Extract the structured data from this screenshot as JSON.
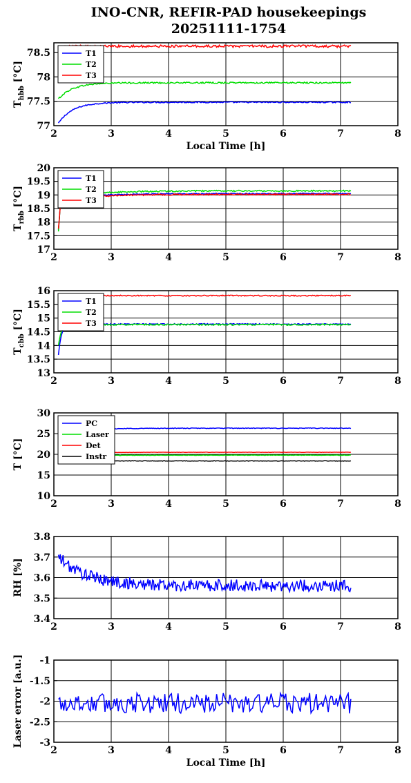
{
  "title_line1": "INO-CNR, REFIR-PAD housekeepings",
  "title_line2": "20251111-1754",
  "chart_data": [
    {
      "type": "line",
      "ylabel": "T_hbb [°C]",
      "ylabel_main": "T",
      "ylabel_sub": "hbb",
      "ylabel_rest": " [°C]",
      "xlabel": "Local Time [h]",
      "xlim": [
        2,
        8
      ],
      "ylim": [
        77,
        78.7
      ],
      "xticks": [
        2,
        3,
        4,
        5,
        6,
        7,
        8
      ],
      "yticks": [
        77,
        77.5,
        78,
        78.5
      ],
      "ytick_labels": [
        "77",
        "77.5",
        "78",
        "78.5"
      ],
      "grid": true,
      "legend": "top-left",
      "series": [
        {
          "name": "T1",
          "color": "#0000ff",
          "base": 77.48,
          "noise": 0.012,
          "start": 77.05,
          "tau": 0.25
        },
        {
          "name": "T2",
          "color": "#00dd00",
          "base": 77.88,
          "noise": 0.015,
          "start": 77.55,
          "tau": 0.25
        },
        {
          "name": "T3",
          "color": "#ff0000",
          "base": 78.63,
          "noise": 0.025,
          "start": 78.6,
          "tau": 0.1
        }
      ]
    },
    {
      "type": "line",
      "ylabel": "T_rbb [°C]",
      "ylabel_main": "T",
      "ylabel_sub": "rbb",
      "ylabel_rest": " [°C]",
      "xlabel": "",
      "xlim": [
        2,
        8
      ],
      "ylim": [
        17,
        20
      ],
      "xticks": [
        2,
        3,
        4,
        5,
        6,
        7,
        8
      ],
      "yticks": [
        17,
        17.5,
        18,
        18.5,
        19,
        19.5,
        20
      ],
      "ytick_labels": [
        "17",
        "17.5",
        "18",
        "18.5",
        "19",
        "19.5",
        "20"
      ],
      "grid": true,
      "legend": "top-left",
      "series": [
        {
          "name": "T1",
          "color": "#0000ff",
          "base": 19.05,
          "noise": 0.02,
          "start": 17.7,
          "tau": 0.6,
          "mid": 18.85
        },
        {
          "name": "T2",
          "color": "#00dd00",
          "base": 19.15,
          "noise": 0.025,
          "start": 17.65,
          "tau": 0.6,
          "mid": 18.9
        },
        {
          "name": "T3",
          "color": "#ff0000",
          "base": 19.02,
          "noise": 0.025,
          "start": 17.75,
          "tau": 0.6,
          "mid": 18.8
        }
      ]
    },
    {
      "type": "line",
      "ylabel": "T_cbb [°C]",
      "ylabel_main": "T",
      "ylabel_sub": "cbb",
      "ylabel_rest": " [°C]",
      "xlabel": "",
      "xlim": [
        2,
        8
      ],
      "ylim": [
        13,
        16
      ],
      "xticks": [
        2,
        3,
        4,
        5,
        6,
        7,
        8
      ],
      "yticks": [
        13,
        13.5,
        14,
        14.5,
        15,
        15.5,
        16
      ],
      "ytick_labels": [
        "13",
        "13.5",
        "14",
        "14.5",
        "15",
        "15.5",
        "16"
      ],
      "grid": true,
      "legend": "top-left",
      "series": [
        {
          "name": "T1",
          "color": "#0000ff",
          "base": 14.78,
          "noise": 0.02,
          "start": 13.65,
          "tau": 0.05
        },
        {
          "name": "T2",
          "color": "#00dd00",
          "base": 14.76,
          "noise": 0.025,
          "start": 14.0,
          "tau": 0.05
        },
        {
          "name": "T3",
          "color": "#ff0000",
          "base": 15.82,
          "noise": 0.02,
          "start": 15.8,
          "tau": 0.05
        }
      ]
    },
    {
      "type": "line",
      "ylabel": "T [°C]",
      "xlabel": "",
      "xlim": [
        2,
        8
      ],
      "ylim": [
        10,
        30
      ],
      "xticks": [
        2,
        3,
        4,
        5,
        6,
        7,
        8
      ],
      "yticks": [
        10,
        15,
        20,
        25,
        30
      ],
      "ytick_labels": [
        "10",
        "15",
        "20",
        "25",
        "30"
      ],
      "grid": true,
      "legend": "top-left",
      "series": [
        {
          "name": "PC",
          "color": "#0000ff",
          "base": 26.3,
          "noise": 0.08,
          "start": 25.5,
          "tau": 0.5
        },
        {
          "name": "Laser",
          "color": "#00dd00",
          "base": 19.8,
          "noise": 0.05,
          "start": 19.5,
          "tau": 0.5
        },
        {
          "name": "Det",
          "color": "#ff0000",
          "base": 20.5,
          "noise": 0.04,
          "start": 20.2,
          "tau": 0.5
        },
        {
          "name": "Instr",
          "color": "#000000",
          "base": 18.4,
          "noise": 0.06,
          "start": 18.6,
          "tau": 0.5
        }
      ]
    },
    {
      "type": "line",
      "ylabel": "RH [%]",
      "xlabel": "",
      "xlim": [
        2,
        8
      ],
      "ylim": [
        3.4,
        3.8
      ],
      "xticks": [
        2,
        3,
        4,
        5,
        6,
        7,
        8
      ],
      "yticks": [
        3.4,
        3.5,
        3.6,
        3.7,
        3.8
      ],
      "ytick_labels": [
        "3.4",
        "3.5",
        "3.6",
        "3.7",
        "3.8"
      ],
      "grid": true,
      "series": [
        {
          "name": "",
          "color": "#0000ff",
          "base": 3.56,
          "noise": 0.03,
          "start": 3.7,
          "tau": 0.5
        }
      ]
    },
    {
      "type": "line",
      "ylabel": "Laser error [a.u.]",
      "xlabel": "Local Time [h]",
      "xlim": [
        2,
        8
      ],
      "ylim": [
        -3,
        -1
      ],
      "xticks": [
        2,
        3,
        4,
        5,
        6,
        7,
        8
      ],
      "yticks": [
        -3,
        -2.5,
        -2,
        -1.5,
        -1
      ],
      "ytick_labels": [
        "-3",
        "-2.5",
        "-2",
        "-1.5",
        "-1"
      ],
      "grid": true,
      "series": [
        {
          "name": "",
          "color": "#0000ff",
          "base": -2.05,
          "noise": 0.25,
          "start": -2.05,
          "tau": 0.1
        }
      ]
    }
  ]
}
